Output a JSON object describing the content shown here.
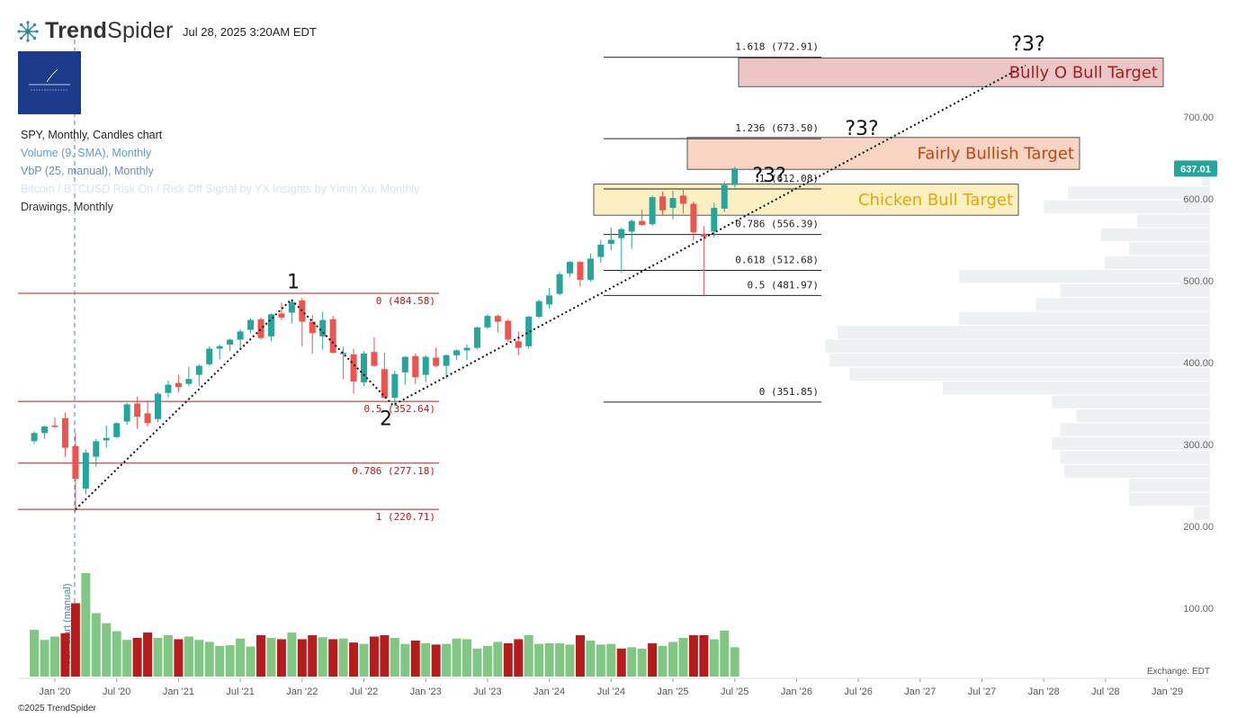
{
  "header": {
    "brand_bold": "Trend",
    "brand_light": "Spider",
    "datetime": "Jul 28, 2025 3:20AM EDT"
  },
  "legend": {
    "main": "SPY, Monthly, Candles chart",
    "volume": "Volume (9, SMA), Monthly",
    "vbp": "VbP (25, manual), Monthly",
    "indicator": "Bitcoin / BTCUSD Risk On / Risk Off Signal by YX Insights by Yimin Xu, Monthly",
    "drawings": "Drawings, Monthly"
  },
  "footer": {
    "copyright": "©2025 TrendSpider",
    "exchange": "Exchange: EDT"
  },
  "colors": {
    "bull": "#26a69a",
    "bear": "#ef5350",
    "vol_up": "#81c784",
    "vol_down": "#b71c1c",
    "fib_red": "#b71c1c",
    "price_tag": "#26a69a"
  },
  "chart_data": {
    "type": "candlestick",
    "symbol": "SPY",
    "interval": "Monthly",
    "x_ticks": [
      "Jan '20",
      "Jul '20",
      "Jan '21",
      "Jul '21",
      "Jan '22",
      "Jul '22",
      "Jan '23",
      "Jul '23",
      "Jan '24",
      "Jul '24",
      "Jan '25",
      "Jul '25",
      "Jan '26",
      "Jul '26",
      "Jan '27",
      "Jul '27",
      "Jan '28",
      "Jul '28",
      "Jan '29"
    ],
    "y_ticks": [
      100,
      200,
      300,
      400,
      500,
      600,
      700
    ],
    "y_tick_labels": [
      "100.00",
      "200.00",
      "300.00",
      "400.00",
      "500.00",
      "600.00",
      "700.00"
    ],
    "last_price": "637.01",
    "candles": [
      {
        "d": "2019-11",
        "o": 304,
        "h": 316,
        "l": 301,
        "c": 314
      },
      {
        "d": "2019-12",
        "o": 314,
        "h": 323,
        "l": 307,
        "c": 322
      },
      {
        "d": "2020-01",
        "o": 323,
        "h": 333,
        "l": 320,
        "c": 322
      },
      {
        "d": "2020-02",
        "o": 332,
        "h": 339,
        "l": 285,
        "c": 296
      },
      {
        "d": "2020-03",
        "o": 298,
        "h": 314,
        "l": 218,
        "c": 258
      },
      {
        "d": "2020-04",
        "o": 246,
        "h": 294,
        "l": 239,
        "c": 290
      },
      {
        "d": "2020-05",
        "o": 285,
        "h": 307,
        "l": 273,
        "c": 304
      },
      {
        "d": "2020-06",
        "o": 305,
        "h": 323,
        "l": 296,
        "c": 308
      },
      {
        "d": "2020-07",
        "o": 309,
        "h": 327,
        "l": 308,
        "c": 326
      },
      {
        "d": "2020-08",
        "o": 328,
        "h": 351,
        "l": 324,
        "c": 349
      },
      {
        "d": "2020-09",
        "o": 350,
        "h": 358,
        "l": 319,
        "c": 334
      },
      {
        "d": "2020-10",
        "o": 338,
        "h": 354,
        "l": 322,
        "c": 326
      },
      {
        "d": "2020-11",
        "o": 331,
        "h": 364,
        "l": 327,
        "c": 362
      },
      {
        "d": "2020-12",
        "o": 363,
        "h": 378,
        "l": 357,
        "c": 373
      },
      {
        "d": "2021-01",
        "o": 375,
        "h": 385,
        "l": 364,
        "c": 370
      },
      {
        "d": "2021-02",
        "o": 374,
        "h": 395,
        "l": 371,
        "c": 380
      },
      {
        "d": "2021-03",
        "o": 385,
        "h": 398,
        "l": 371,
        "c": 396
      },
      {
        "d": "2021-04",
        "o": 398,
        "h": 420,
        "l": 396,
        "c": 417
      },
      {
        "d": "2021-05",
        "o": 417,
        "h": 422,
        "l": 404,
        "c": 420
      },
      {
        "d": "2021-06",
        "o": 422,
        "h": 429,
        "l": 414,
        "c": 428
      },
      {
        "d": "2021-07",
        "o": 428,
        "h": 441,
        "l": 418,
        "c": 438
      },
      {
        "d": "2021-08",
        "o": 440,
        "h": 454,
        "l": 436,
        "c": 452
      },
      {
        "d": "2021-09",
        "o": 453,
        "h": 455,
        "l": 428,
        "c": 430
      },
      {
        "d": "2021-10",
        "o": 432,
        "h": 460,
        "l": 426,
        "c": 459
      },
      {
        "d": "2021-11",
        "o": 460,
        "h": 473,
        "l": 452,
        "c": 455
      },
      {
        "d": "2021-12",
        "o": 461,
        "h": 477,
        "l": 448,
        "c": 474
      },
      {
        "d": "2022-01",
        "o": 476,
        "h": 479,
        "l": 420,
        "c": 450
      },
      {
        "d": "2022-02",
        "o": 450,
        "h": 458,
        "l": 411,
        "c": 436
      },
      {
        "d": "2022-03",
        "o": 432,
        "h": 462,
        "l": 416,
        "c": 452
      },
      {
        "d": "2022-04",
        "o": 453,
        "h": 457,
        "l": 411,
        "c": 412
      },
      {
        "d": "2022-05",
        "o": 412,
        "h": 419,
        "l": 380,
        "c": 412
      },
      {
        "d": "2022-06",
        "o": 410,
        "h": 417,
        "l": 362,
        "c": 377
      },
      {
        "d": "2022-07",
        "o": 376,
        "h": 414,
        "l": 371,
        "c": 411
      },
      {
        "d": "2022-08",
        "o": 413,
        "h": 431,
        "l": 395,
        "c": 396
      },
      {
        "d": "2022-09",
        "o": 392,
        "h": 412,
        "l": 357,
        "c": 357
      },
      {
        "d": "2022-10",
        "o": 357,
        "h": 390,
        "l": 348,
        "c": 386
      },
      {
        "d": "2022-11",
        "o": 388,
        "h": 408,
        "l": 373,
        "c": 407
      },
      {
        "d": "2022-12",
        "o": 408,
        "h": 411,
        "l": 374,
        "c": 382
      },
      {
        "d": "2023-01",
        "o": 385,
        "h": 409,
        "l": 376,
        "c": 407
      },
      {
        "d": "2023-02",
        "o": 406,
        "h": 418,
        "l": 394,
        "c": 396
      },
      {
        "d": "2023-03",
        "o": 396,
        "h": 410,
        "l": 380,
        "c": 409
      },
      {
        "d": "2023-04",
        "o": 409,
        "h": 416,
        "l": 403,
        "c": 415
      },
      {
        "d": "2023-05",
        "o": 415,
        "h": 422,
        "l": 403,
        "c": 418
      },
      {
        "d": "2023-06",
        "o": 418,
        "h": 444,
        "l": 416,
        "c": 443
      },
      {
        "d": "2023-07",
        "o": 443,
        "h": 459,
        "l": 441,
        "c": 457
      },
      {
        "d": "2023-08",
        "o": 457,
        "h": 459,
        "l": 437,
        "c": 450
      },
      {
        "d": "2023-09",
        "o": 451,
        "h": 453,
        "l": 425,
        "c": 428
      },
      {
        "d": "2023-10",
        "o": 426,
        "h": 438,
        "l": 409,
        "c": 418
      },
      {
        "d": "2023-11",
        "o": 420,
        "h": 457,
        "l": 417,
        "c": 456
      },
      {
        "d": "2023-12",
        "o": 456,
        "h": 477,
        "l": 454,
        "c": 475
      },
      {
        "d": "2024-01",
        "o": 471,
        "h": 491,
        "l": 466,
        "c": 482
      },
      {
        "d": "2024-02",
        "o": 484,
        "h": 511,
        "l": 482,
        "c": 508
      },
      {
        "d": "2024-03",
        "o": 509,
        "h": 524,
        "l": 505,
        "c": 523
      },
      {
        "d": "2024-04",
        "o": 523,
        "h": 524,
        "l": 493,
        "c": 501
      },
      {
        "d": "2024-05",
        "o": 501,
        "h": 533,
        "l": 499,
        "c": 527
      },
      {
        "d": "2024-06",
        "o": 529,
        "h": 550,
        "l": 522,
        "c": 544
      },
      {
        "d": "2024-07",
        "o": 545,
        "h": 565,
        "l": 537,
        "c": 550
      },
      {
        "d": "2024-08",
        "o": 552,
        "h": 565,
        "l": 510,
        "c": 563
      },
      {
        "d": "2024-09",
        "o": 560,
        "h": 575,
        "l": 539,
        "c": 573
      },
      {
        "d": "2024-10",
        "o": 573,
        "h": 587,
        "l": 567,
        "c": 568
      },
      {
        "d": "2024-11",
        "o": 569,
        "h": 604,
        "l": 567,
        "c": 602
      },
      {
        "d": "2024-12",
        "o": 603,
        "h": 609,
        "l": 579,
        "c": 586
      },
      {
        "d": "2025-01",
        "o": 589,
        "h": 610,
        "l": 575,
        "c": 601
      },
      {
        "d": "2025-02",
        "o": 604,
        "h": 613,
        "l": 582,
        "c": 594
      },
      {
        "d": "2025-03",
        "o": 594,
        "h": 597,
        "l": 549,
        "c": 559
      },
      {
        "d": "2025-04",
        "o": 557,
        "h": 567,
        "l": 481,
        "c": 554
      },
      {
        "d": "2025-05",
        "o": 560,
        "h": 595,
        "l": 553,
        "c": 589
      },
      {
        "d": "2025-06",
        "o": 588,
        "h": 621,
        "l": 584,
        "c": 617
      },
      {
        "d": "2025-07",
        "o": 617,
        "h": 639,
        "l": 614,
        "c": 637
      }
    ],
    "volume_scale_note": "relative",
    "volume": [
      70,
      55,
      60,
      65,
      110,
      155,
      95,
      80,
      68,
      55,
      58,
      66,
      58,
      62,
      56,
      60,
      55,
      52,
      46,
      47,
      57,
      45,
      62,
      58,
      56,
      66,
      56,
      62,
      59,
      56,
      57,
      51,
      49,
      60,
      62,
      58,
      49,
      54,
      50,
      48,
      49,
      57,
      56,
      42,
      46,
      52,
      50,
      56,
      62,
      49,
      50,
      50,
      48,
      62,
      54,
      48,
      49,
      42,
      44,
      42,
      50,
      46,
      52,
      58,
      62,
      62,
      56,
      69,
      44
    ],
    "volume_down": [
      false,
      false,
      false,
      true,
      true,
      false,
      false,
      false,
      false,
      false,
      true,
      true,
      false,
      false,
      true,
      false,
      false,
      false,
      false,
      false,
      false,
      false,
      true,
      false,
      true,
      false,
      true,
      true,
      false,
      true,
      false,
      true,
      false,
      true,
      true,
      false,
      false,
      true,
      false,
      true,
      false,
      false,
      false,
      false,
      false,
      false,
      true,
      true,
      false,
      false,
      false,
      false,
      false,
      true,
      false,
      false,
      false,
      true,
      false,
      false,
      true,
      false,
      false,
      false,
      true,
      true,
      false,
      false,
      false
    ],
    "annotations": {
      "wave_labels": [
        "1",
        "2",
        "?3?",
        "?3?",
        "?3?"
      ],
      "fib_left": [
        {
          "label": "0 (484.58)",
          "price": 484.58
        },
        {
          "label": "0.5 (352.64)",
          "price": 352.64
        },
        {
          "label": "0.786 (277.18)",
          "price": 277.18
        },
        {
          "label": "1 (220.71)",
          "price": 220.71
        }
      ],
      "fib_right": [
        {
          "label": "1.618 (772.91)",
          "price": 772.91
        },
        {
          "label": "1.236 (673.50)",
          "price": 673.5
        },
        {
          "label": "1 (612.08)",
          "price": 612.08
        },
        {
          "label": "0.786 (556.39)",
          "price": 556.39
        },
        {
          "label": "0.618 (512.68)",
          "price": 512.68
        },
        {
          "label": "0.5 (481.97)",
          "price": 481.97
        },
        {
          "label": "0 (351.85)",
          "price": 351.85
        }
      ],
      "targets": [
        {
          "label": "Bully O Bull Target",
          "fill": "#ecc6c7",
          "text": "#a31f1f",
          "top_price": 772,
          "bottom_price": 737
        },
        {
          "label": "Fairly Bullish Target",
          "fill": "#f8d5c3",
          "text": "#c44514",
          "top_price": 675,
          "bottom_price": 636
        },
        {
          "label": "Chicken Bull Target",
          "fill": "#fcefc2",
          "text": "#e0a800",
          "top_price": 618,
          "bottom_price": 580
        }
      ],
      "vbp_start_label": "VbP start (manual)"
    },
    "vbp_bars_note": "volume-by-price profile, relative widths",
    "vbp": [
      {
        "lo": 615,
        "hi": 632,
        "w": 0.02
      },
      {
        "lo": 598,
        "hi": 615,
        "w": 0.35
      },
      {
        "lo": 581,
        "hi": 598,
        "w": 0.41
      },
      {
        "lo": 564,
        "hi": 581,
        "w": 0.18
      },
      {
        "lo": 547,
        "hi": 564,
        "w": 0.27
      },
      {
        "lo": 530,
        "hi": 547,
        "w": 0.2
      },
      {
        "lo": 513,
        "hi": 530,
        "w": 0.26
      },
      {
        "lo": 496,
        "hi": 513,
        "w": 0.62
      },
      {
        "lo": 479,
        "hi": 496,
        "w": 0.37
      },
      {
        "lo": 462,
        "hi": 479,
        "w": 0.43
      },
      {
        "lo": 445,
        "hi": 462,
        "w": 0.62
      },
      {
        "lo": 428,
        "hi": 445,
        "w": 0.92
      },
      {
        "lo": 411,
        "hi": 428,
        "w": 0.95
      },
      {
        "lo": 394,
        "hi": 411,
        "w": 0.94
      },
      {
        "lo": 377,
        "hi": 394,
        "w": 0.89
      },
      {
        "lo": 360,
        "hi": 377,
        "w": 0.66
      },
      {
        "lo": 343,
        "hi": 360,
        "w": 0.39
      },
      {
        "lo": 326,
        "hi": 343,
        "w": 0.33
      },
      {
        "lo": 309,
        "hi": 326,
        "w": 0.37
      },
      {
        "lo": 292,
        "hi": 309,
        "w": 0.39
      },
      {
        "lo": 275,
        "hi": 292,
        "w": 0.37
      },
      {
        "lo": 258,
        "hi": 275,
        "w": 0.36
      },
      {
        "lo": 241,
        "hi": 258,
        "w": 0.2
      },
      {
        "lo": 224,
        "hi": 241,
        "w": 0.2
      },
      {
        "lo": 207,
        "hi": 224,
        "w": 0.04
      }
    ]
  }
}
